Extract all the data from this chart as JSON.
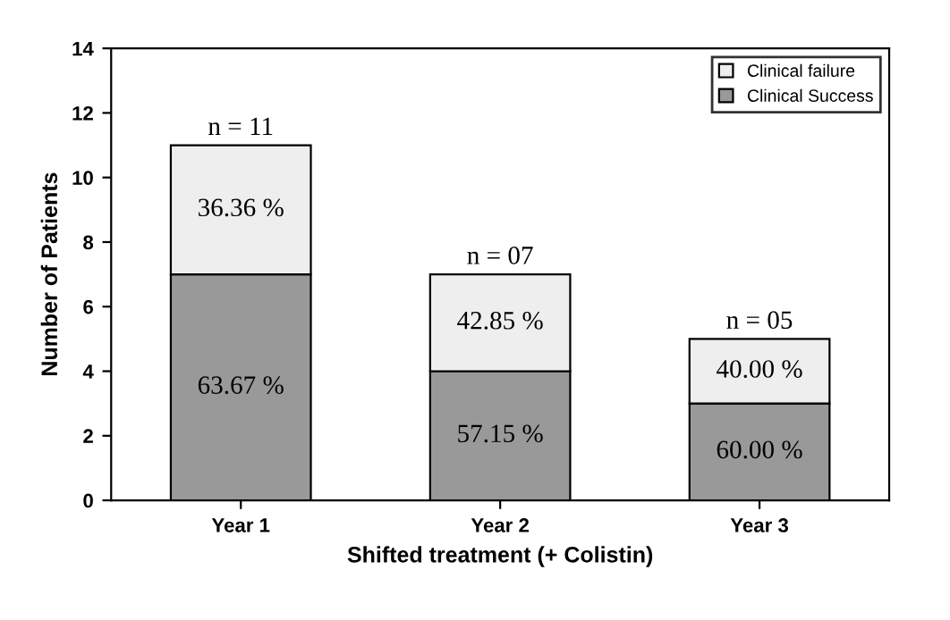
{
  "chart_data": {
    "type": "bar",
    "stacked": true,
    "xlabel": "Shifted treatment (+ Colistin)",
    "ylabel": "Number of Patients",
    "categories": [
      "Year 1",
      "Year 2",
      "Year 3"
    ],
    "series": [
      {
        "name": "Clinical Success",
        "color": "#999999",
        "values": [
          7,
          4,
          3
        ]
      },
      {
        "name": "Clinical failure",
        "color": "#eeeeee",
        "values": [
          4,
          3,
          2
        ]
      }
    ],
    "annotations": [
      "63.67 %",
      "57.15 %",
      "60.00 %",
      "36.36 %",
      "42.85 %",
      "40.00 %"
    ],
    "totals": [
      "n = 11",
      "n = 07",
      "n = 05"
    ],
    "ylim": [
      0,
      14
    ],
    "yticks": [
      0,
      2,
      4,
      6,
      8,
      10,
      12,
      14
    ],
    "legend": "top right",
    "grid": false
  }
}
